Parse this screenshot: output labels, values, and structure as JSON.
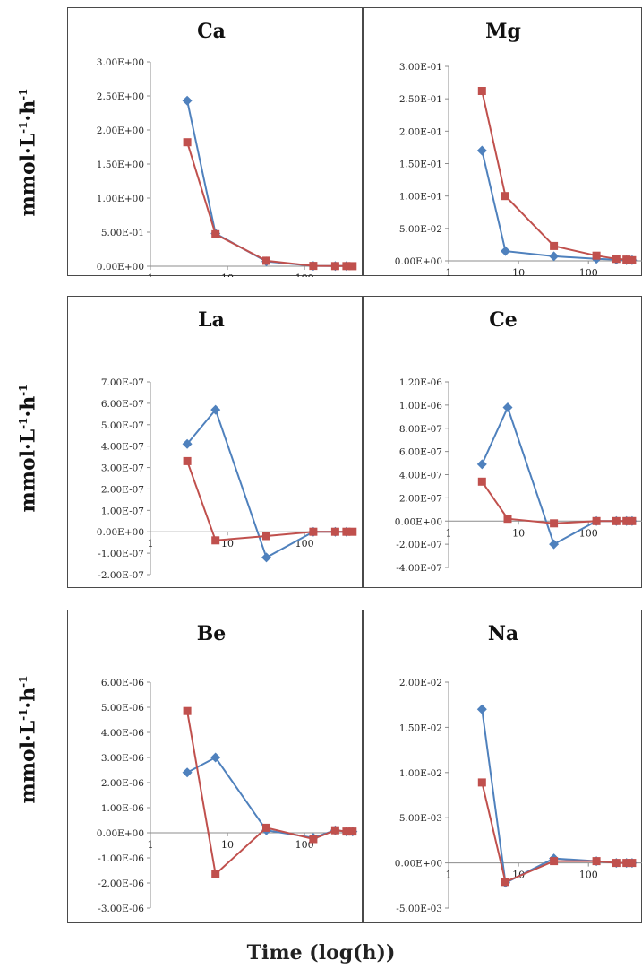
{
  "figure": {
    "ylabel_base": "mmol·L",
    "ylabel_mid": "·h",
    "ylabel_exp": "-1",
    "xlabel": "Time (log(h))"
  },
  "colors": {
    "series1": "#4F81BD",
    "series2": "#C0504D",
    "axis": "#8c8c8c",
    "text": "#222222"
  },
  "chart_data": [
    {
      "type": "scatter",
      "title": "Ca",
      "xscale": "log",
      "xlim": [
        1,
        360
      ],
      "ylim": [
        0,
        3.0
      ],
      "yticks": [
        0,
        0.5,
        1.0,
        1.5,
        2.0,
        2.5,
        3.0
      ],
      "ytick_labels": [
        "0.00E+00",
        "5.00E-01",
        "1.00E+00",
        "1.50E+00",
        "2.00E+00",
        "2.50E+00",
        "3.00E+00"
      ],
      "xticks": [
        1,
        10,
        100
      ],
      "xtick_labels": [
        "1",
        "10",
        "100"
      ],
      "series": [
        {
          "x": [
            3,
            7,
            32,
            130,
            250,
            350
          ],
          "y": [
            2.43,
            0.48,
            0.07,
            0.005,
            0.003,
            0.002
          ]
        },
        {
          "x": [
            3,
            7,
            32,
            130,
            250,
            350,
            420
          ],
          "y": [
            1.82,
            0.47,
            0.08,
            0.005,
            0.003,
            0.002,
            0.001
          ]
        }
      ]
    },
    {
      "type": "scatter",
      "title": "Mg",
      "xscale": "log",
      "xlim": [
        1,
        600
      ],
      "ylim": [
        0,
        0.3
      ],
      "yticks": [
        0,
        0.05,
        0.1,
        0.15,
        0.2,
        0.25,
        0.3
      ],
      "ytick_labels": [
        "0.00E+00",
        "5.00E-02",
        "1.00E-01",
        "1.50E-01",
        "2.00E-01",
        "2.50E-01",
        "3.00E-01"
      ],
      "xticks": [
        1,
        10,
        100
      ],
      "xtick_labels": [
        "1",
        "10",
        "100"
      ],
      "series": [
        {
          "x": [
            3,
            6.5,
            32,
            130,
            250,
            350,
            420
          ],
          "y": [
            0.17,
            0.015,
            0.007,
            0.003,
            0.002,
            0.001,
            0.001
          ]
        },
        {
          "x": [
            3,
            6.5,
            32,
            130,
            250,
            350,
            420
          ],
          "y": [
            0.262,
            0.1,
            0.023,
            0.008,
            0.003,
            0.002,
            0.001
          ]
        }
      ]
    },
    {
      "type": "scatter",
      "title": "La",
      "xscale": "log",
      "xlim": [
        1,
        360
      ],
      "ylim": [
        -2e-07,
        7e-07
      ],
      "yticks": [
        -2e-07,
        -1e-07,
        0,
        1e-07,
        2e-07,
        3e-07,
        4e-07,
        5e-07,
        6e-07,
        7e-07
      ],
      "ytick_labels": [
        "-2.00E-07",
        "-1.00E-07",
        "0.00E+00",
        "1.00E-07",
        "2.00E-07",
        "3.00E-07",
        "4.00E-07",
        "5.00E-07",
        "6.00E-07",
        "7.00E-07"
      ],
      "xticks": [
        1,
        10,
        100
      ],
      "xtick_labels": [
        "1",
        "10",
        "100"
      ],
      "series": [
        {
          "x": [
            3,
            7,
            32,
            130,
            250,
            350
          ],
          "y": [
            4.1e-07,
            5.7e-07,
            -1.2e-07,
            0,
            0,
            0
          ]
        },
        {
          "x": [
            3,
            7,
            32,
            130,
            250,
            350,
            420
          ],
          "y": [
            3.3e-07,
            -4e-08,
            -2e-08,
            0,
            0,
            0,
            0
          ]
        }
      ]
    },
    {
      "type": "scatter",
      "title": "Ce",
      "xscale": "log",
      "xlim": [
        1,
        600
      ],
      "ylim": [
        -4e-07,
        1.2e-06
      ],
      "yticks": [
        -4e-07,
        -2e-07,
        0,
        2e-07,
        4e-07,
        6e-07,
        8e-07,
        1e-06,
        1.2e-06
      ],
      "ytick_labels": [
        "-4.00E-07",
        "-2.00E-07",
        "0.00E+00",
        "2.00E-07",
        "4.00E-07",
        "6.00E-07",
        "8.00E-07",
        "1.00E-06",
        "1.20E-06"
      ],
      "xticks": [
        1,
        10,
        100
      ],
      "xtick_labels": [
        "1",
        "10",
        "100"
      ],
      "series": [
        {
          "x": [
            3,
            7,
            32,
            130,
            250,
            350,
            420
          ],
          "y": [
            4.9e-07,
            9.8e-07,
            -2e-07,
            0,
            0,
            0,
            0
          ]
        },
        {
          "x": [
            3,
            7,
            32,
            130,
            250,
            350,
            420
          ],
          "y": [
            3.4e-07,
            2e-08,
            -2e-08,
            0,
            0,
            0,
            0
          ]
        }
      ]
    },
    {
      "type": "scatter",
      "title": "Be",
      "xscale": "log",
      "xlim": [
        1,
        360
      ],
      "ylim": [
        -3e-06,
        6e-06
      ],
      "yticks": [
        -3e-06,
        -2e-06,
        -1e-06,
        0,
        1e-06,
        2e-06,
        3e-06,
        4e-06,
        5e-06,
        6e-06
      ],
      "ytick_labels": [
        "-3.00E-06",
        "-2.00E-06",
        "-1.00E-06",
        "0.00E+00",
        "1.00E-06",
        "2.00E-06",
        "3.00E-06",
        "4.00E-06",
        "5.00E-06",
        "6.00E-06"
      ],
      "xticks": [
        1,
        10,
        100
      ],
      "xtick_labels": [
        "1",
        "10",
        "100"
      ],
      "series": [
        {
          "x": [
            3,
            7,
            32,
            130,
            250,
            350,
            420
          ],
          "y": [
            2.4e-06,
            3e-06,
            1e-07,
            -2e-07,
            1e-07,
            5e-08,
            5e-08
          ]
        },
        {
          "x": [
            3,
            7,
            32,
            130,
            250,
            350,
            420
          ],
          "y": [
            4.85e-06,
            -1.65e-06,
            2e-07,
            -2.5e-07,
            1e-07,
            5e-08,
            5e-08
          ]
        }
      ]
    },
    {
      "type": "scatter",
      "title": "Na",
      "xscale": "log",
      "xlim": [
        1,
        600
      ],
      "ylim": [
        -0.005,
        0.02
      ],
      "yticks": [
        -0.005,
        0,
        0.005,
        0.01,
        0.015,
        0.02
      ],
      "ytick_labels": [
        "-5.00E-03",
        "0.00E+00",
        "5.00E-03",
        "1.00E-02",
        "1.50E-02",
        "2.00E-02"
      ],
      "xticks": [
        1,
        10,
        100
      ],
      "xtick_labels": [
        "1",
        "10",
        "100"
      ],
      "series": [
        {
          "x": [
            3,
            6.5,
            32,
            130,
            250,
            350,
            420
          ],
          "y": [
            0.017,
            -0.0022,
            0.0005,
            0.0002,
            0,
            0,
            0
          ]
        },
        {
          "x": [
            3,
            6.5,
            32,
            130,
            250,
            350,
            420
          ],
          "y": [
            0.0089,
            -0.0021,
            0.0002,
            0.0002,
            0,
            0,
            0
          ]
        }
      ]
    }
  ]
}
